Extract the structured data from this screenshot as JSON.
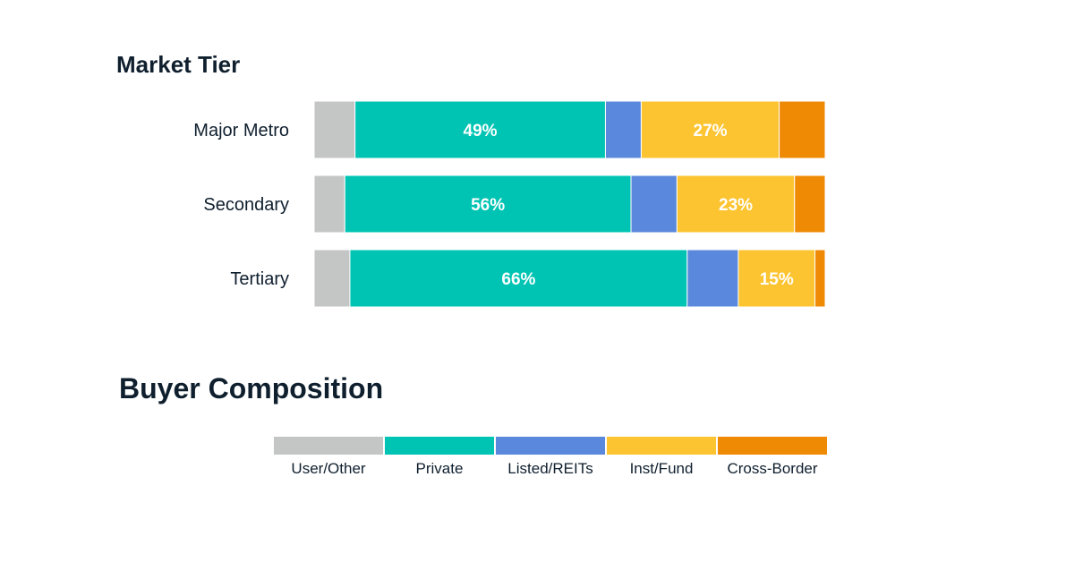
{
  "chart_data": {
    "type": "bar",
    "orientation": "horizontal",
    "stacked": true,
    "title": "Market Tier",
    "legend_title": "Buyer Composition",
    "legend_placement": "bottom",
    "grid": false,
    "xlim": [
      0,
      100
    ],
    "categories": [
      "Major Metro",
      "Secondary",
      "Tertiary"
    ],
    "series": [
      {
        "name": "User/Other",
        "color": "#c4c6c5",
        "values": [
          8,
          6,
          7
        ],
        "labels": [
          "",
          "",
          ""
        ]
      },
      {
        "name": "Private",
        "color": "#00c4b3",
        "values": [
          49,
          56,
          66
        ],
        "labels": [
          "49%",
          "56%",
          "66%"
        ]
      },
      {
        "name": "Listed/REITs",
        "color": "#5a88dc",
        "values": [
          7,
          9,
          10
        ],
        "labels": [
          "",
          "",
          ""
        ]
      },
      {
        "name": "Inst/Fund",
        "color": "#fdc431",
        "values": [
          27,
          23,
          15
        ],
        "labels": [
          "27%",
          "23%",
          "15%"
        ]
      },
      {
        "name": "Cross-Border",
        "color": "#ef8a05",
        "values": [
          9,
          6,
          2
        ],
        "labels": [
          "",
          "",
          ""
        ]
      }
    ]
  }
}
